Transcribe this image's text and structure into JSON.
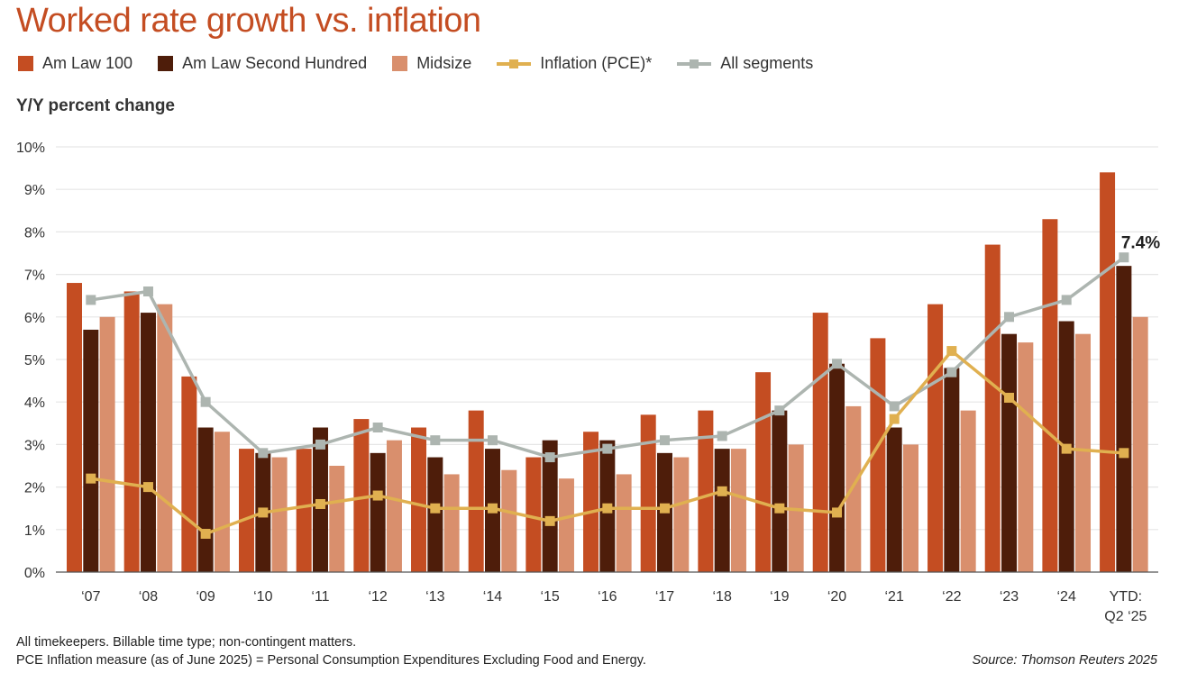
{
  "title": "Worked rate growth vs. inflation",
  "legend": [
    {
      "label": "Am Law 100",
      "kind": "bar",
      "color": "#c44d22"
    },
    {
      "label": "Am Law Second Hundred",
      "kind": "bar",
      "color": "#4e1d0a"
    },
    {
      "label": "Midsize",
      "kind": "bar",
      "color": "#d98f6d"
    },
    {
      "label": "Inflation (PCE)*",
      "kind": "line",
      "color": "#e0b050"
    },
    {
      "label": "All segments",
      "kind": "line",
      "color": "#adb5b0"
    }
  ],
  "footnotes": [
    "All timekeepers. Billable time type; non-contingent matters.",
    "PCE Inflation measure (as of June 2025) =  Personal Consumption Expenditures Excluding Food and Energy."
  ],
  "source": "Source: Thomson Reuters 2025",
  "chart_data": {
    "type": "bar",
    "title": "Worked rate growth vs. inflation",
    "ylabel": "Y/Y percent change",
    "xlabel": "",
    "ylim": [
      0,
      10
    ],
    "yticks": [
      "0%",
      "1%",
      "2%",
      "3%",
      "4%",
      "5%",
      "6%",
      "7%",
      "8%",
      "9%",
      "10%"
    ],
    "grid": true,
    "legend_position": "top",
    "categories": [
      "‘07",
      "‘08",
      "‘09",
      "‘10",
      "‘11",
      "‘12",
      "‘13",
      "‘14",
      "‘15",
      "‘16",
      "‘17",
      "‘18",
      "‘19",
      "‘20",
      "‘21",
      "‘22",
      "‘23",
      "‘24",
      "YTD: Q2 ‘25"
    ],
    "series": [
      {
        "name": "Am Law 100",
        "type": "bar",
        "color": "#c44d22",
        "values": [
          6.8,
          6.6,
          4.6,
          2.9,
          2.9,
          3.6,
          3.4,
          3.8,
          2.7,
          3.3,
          3.7,
          3.8,
          4.7,
          6.1,
          5.5,
          6.3,
          7.7,
          8.3,
          9.4
        ]
      },
      {
        "name": "Am Law Second Hundred",
        "type": "bar",
        "color": "#4e1d0a",
        "values": [
          5.7,
          6.1,
          3.4,
          2.8,
          3.4,
          2.8,
          2.7,
          2.9,
          3.1,
          3.1,
          2.8,
          2.9,
          3.8,
          4.9,
          3.4,
          4.8,
          5.6,
          5.9,
          7.2
        ]
      },
      {
        "name": "Midsize",
        "type": "bar",
        "color": "#d98f6d",
        "values": [
          6.0,
          6.3,
          3.3,
          2.7,
          2.5,
          3.1,
          2.3,
          2.4,
          2.2,
          2.3,
          2.7,
          2.9,
          3.0,
          3.9,
          3.0,
          3.8,
          5.4,
          5.6,
          6.0
        ]
      },
      {
        "name": "Inflation (PCE)*",
        "type": "line",
        "color": "#e0b050",
        "values": [
          2.2,
          2.0,
          0.9,
          1.4,
          1.6,
          1.8,
          1.5,
          1.5,
          1.2,
          1.5,
          1.5,
          1.9,
          1.5,
          1.4,
          3.6,
          5.2,
          4.1,
          2.9,
          2.8
        ]
      },
      {
        "name": "All segments",
        "type": "line",
        "color": "#adb5b0",
        "values": [
          6.4,
          6.6,
          4.0,
          2.8,
          3.0,
          3.4,
          3.1,
          3.1,
          2.7,
          2.9,
          3.1,
          3.2,
          3.8,
          4.9,
          3.9,
          4.7,
          6.0,
          6.4,
          7.4
        ]
      }
    ],
    "annotations": [
      {
        "series": "All segments",
        "category": "YTD: Q2 ‘25",
        "text": "7.4%"
      }
    ]
  }
}
